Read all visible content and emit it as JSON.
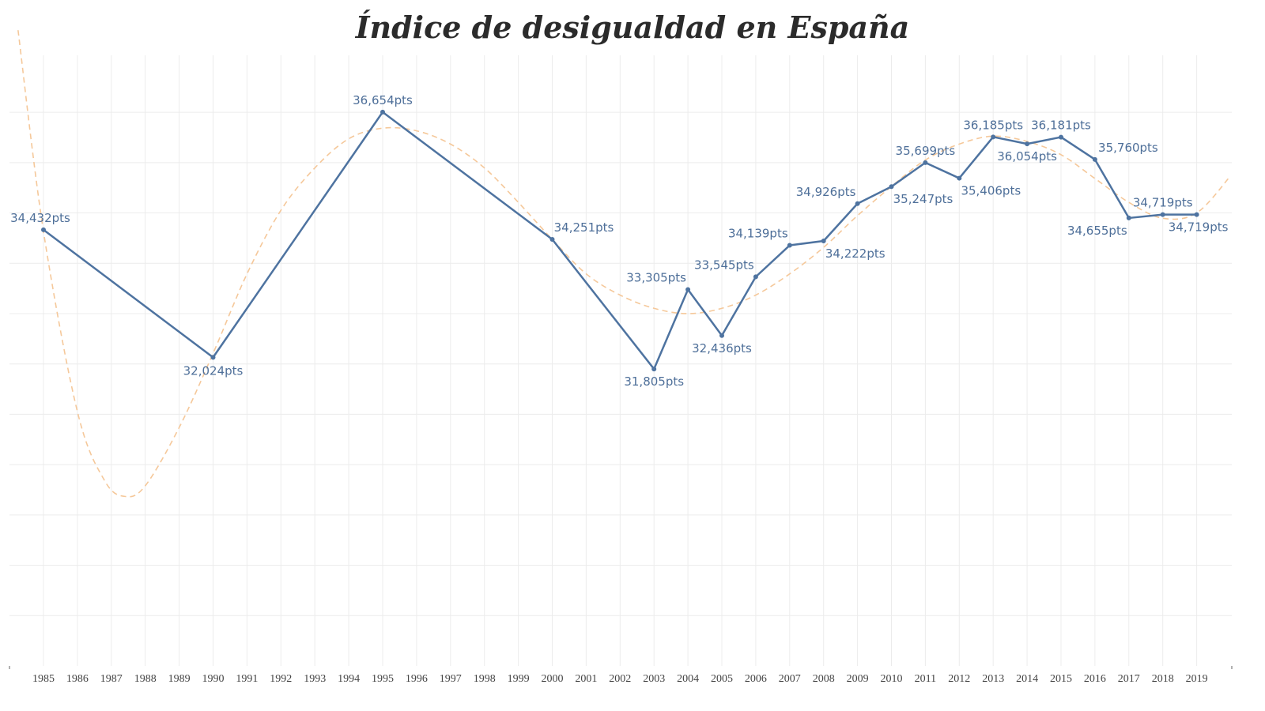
{
  "title": "Índice de desigualdad en España",
  "chart_data": {
    "type": "line",
    "title": "Índice de desigualdad en España",
    "xlabel": "",
    "ylabel": "",
    "x_categories": [
      "1985",
      "1986",
      "1987",
      "1988",
      "1989",
      "1990",
      "1991",
      "1992",
      "1993",
      "1994",
      "1995",
      "1996",
      "1997",
      "1998",
      "1999",
      "2000",
      "2001",
      "2002",
      "2003",
      "2004",
      "2005",
      "2006",
      "2007",
      "2008",
      "2009",
      "2010",
      "2011",
      "2012",
      "2013",
      "2014",
      "2015",
      "2016",
      "2017",
      "2018",
      "2019"
    ],
    "ylim": [
      26.2,
      37.8
    ],
    "grid": true,
    "series": [
      {
        "color": "#4e73a0",
        "points": [
          {
            "x": 1985,
            "y": 34.432,
            "label": "34,432pts"
          },
          {
            "x": 1990,
            "y": 32.024,
            "label": "32,024pts"
          },
          {
            "x": 1995,
            "y": 36.654,
            "label": "36,654pts"
          },
          {
            "x": 2000,
            "y": 34.251,
            "label": "34,251pts"
          },
          {
            "x": 2003,
            "y": 31.805,
            "label": "31,805pts"
          },
          {
            "x": 2004,
            "y": 33.305,
            "label": "33,305pts"
          },
          {
            "x": 2005,
            "y": 32.436,
            "label": "32,436pts"
          },
          {
            "x": 2006,
            "y": 33.545,
            "label": "33,545pts"
          },
          {
            "x": 2007,
            "y": 34.139,
            "label": "34,139pts"
          },
          {
            "x": 2008,
            "y": 34.222,
            "label": "34,222pts"
          },
          {
            "x": 2009,
            "y": 34.926,
            "label": "34,926pts"
          },
          {
            "x": 2010,
            "y": 35.247,
            "label": "35,247pts"
          },
          {
            "x": 2011,
            "y": 35.699,
            "label": "35,699pts"
          },
          {
            "x": 2012,
            "y": 35.406,
            "label": "35,406pts"
          },
          {
            "x": 2013,
            "y": 36.185,
            "label": "36,185pts"
          },
          {
            "x": 2014,
            "y": 36.054,
            "label": "36,054pts"
          },
          {
            "x": 2015,
            "y": 36.181,
            "label": "36,181pts"
          },
          {
            "x": 2016,
            "y": 35.76,
            "label": "35,760pts"
          },
          {
            "x": 2017,
            "y": 34.655,
            "label": "34,655pts"
          },
          {
            "x": 2018,
            "y": 34.719,
            "label": "34,719pts"
          },
          {
            "x": 2019,
            "y": 34.719,
            "label": "34,719pts"
          }
        ]
      }
    ],
    "trend_line": {
      "style": "dashed",
      "color": "#f5c89a",
      "points": [
        {
          "x": 1984.25,
          "y": 38.2
        },
        {
          "x": 1985,
          "y": 34.4
        },
        {
          "x": 1986,
          "y": 31.0
        },
        {
          "x": 1986.8,
          "y": 29.7
        },
        {
          "x": 1987.4,
          "y": 29.4
        },
        {
          "x": 1988,
          "y": 29.6
        },
        {
          "x": 1989,
          "y": 30.7
        },
        {
          "x": 1990,
          "y": 32.1
        },
        {
          "x": 1991,
          "y": 33.6
        },
        {
          "x": 1992,
          "y": 34.8
        },
        {
          "x": 1993,
          "y": 35.6
        },
        {
          "x": 1994,
          "y": 36.15
        },
        {
          "x": 1995,
          "y": 36.35
        },
        {
          "x": 1996,
          "y": 36.3
        },
        {
          "x": 1997,
          "y": 36.05
        },
        {
          "x": 1998,
          "y": 35.6
        },
        {
          "x": 1999,
          "y": 34.95
        },
        {
          "x": 2000,
          "y": 34.25
        },
        {
          "x": 2001,
          "y": 33.6
        },
        {
          "x": 2002,
          "y": 33.2
        },
        {
          "x": 2003,
          "y": 32.95
        },
        {
          "x": 2004,
          "y": 32.85
        },
        {
          "x": 2005,
          "y": 32.95
        },
        {
          "x": 2006,
          "y": 33.2
        },
        {
          "x": 2007,
          "y": 33.6
        },
        {
          "x": 2008,
          "y": 34.1
        },
        {
          "x": 2009,
          "y": 34.7
        },
        {
          "x": 2010,
          "y": 35.25
        },
        {
          "x": 2011,
          "y": 35.75
        },
        {
          "x": 2012,
          "y": 36.05
        },
        {
          "x": 2013,
          "y": 36.2
        },
        {
          "x": 2014,
          "y": 36.1
        },
        {
          "x": 2015,
          "y": 35.85
        },
        {
          "x": 2016,
          "y": 35.4
        },
        {
          "x": 2017,
          "y": 34.95
        },
        {
          "x": 2018,
          "y": 34.65
        },
        {
          "x": 2019,
          "y": 34.75
        },
        {
          "x": 2020.0,
          "y": 35.45
        }
      ]
    }
  }
}
